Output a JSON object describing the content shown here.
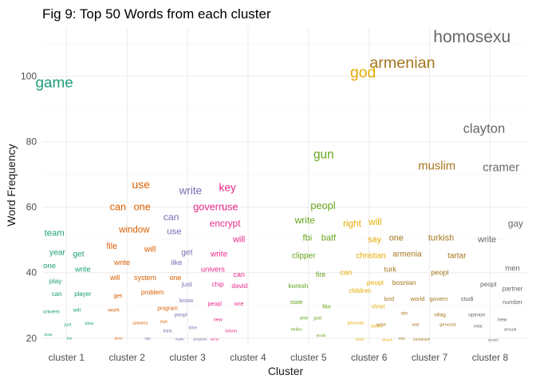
{
  "chart_data": {
    "type": "scatter",
    "title": "Fig 9: Top 50 Words from each cluster",
    "xlabel": "Cluster",
    "ylabel": "Word Frequency",
    "categories": [
      "cluster 1",
      "cluster 2",
      "cluster 3",
      "cluster 4",
      "cluster 5",
      "cluster 6",
      "cluster 7",
      "cluster 8"
    ],
    "yticks": [
      20,
      40,
      60,
      80,
      100
    ],
    "ylim": [
      18,
      115
    ],
    "grid": true,
    "legend": "none",
    "colors": {
      "cluster 1": "#1b9e77",
      "cluster 2": "#d95f02",
      "cluster 3": "#7570b3",
      "cluster 4": "#e7298a",
      "cluster 5": "#66a61e",
      "cluster 6": "#e6ab02",
      "cluster 7": "#a6761d",
      "cluster 8": "#666666"
    },
    "words": [
      {
        "cluster": 1,
        "word": "game",
        "freq": 98,
        "x": 0.8
      },
      {
        "cluster": 1,
        "word": "team",
        "freq": 52,
        "x": 0.8
      },
      {
        "cluster": 1,
        "word": "year",
        "freq": 46,
        "x": 0.85
      },
      {
        "cluster": 1,
        "word": "get",
        "freq": 45.5,
        "x": 1.2
      },
      {
        "cluster": 1,
        "word": "one",
        "freq": 42,
        "x": 0.72
      },
      {
        "cluster": 1,
        "word": "write",
        "freq": 41,
        "x": 1.27
      },
      {
        "cluster": 1,
        "word": "play",
        "freq": 37.5,
        "x": 0.82
      },
      {
        "cluster": 1,
        "word": "can",
        "freq": 33.5,
        "x": 0.84
      },
      {
        "cluster": 1,
        "word": "player",
        "freq": 33.5,
        "x": 1.27
      },
      {
        "cluster": 1,
        "word": "univers",
        "freq": 28,
        "x": 0.75
      },
      {
        "cluster": 1,
        "word": "will",
        "freq": 28.5,
        "x": 1.17
      },
      {
        "cluster": 1,
        "word": "just",
        "freq": 24,
        "x": 1.02
      },
      {
        "cluster": 1,
        "word": "time",
        "freq": 24.3,
        "x": 1.38
      },
      {
        "cluster": 1,
        "word": "think",
        "freq": 20.8,
        "x": 0.7
      },
      {
        "cluster": 1,
        "word": "fan",
        "freq": 20,
        "x": 1.05
      },
      {
        "cluster": 2,
        "word": "use",
        "freq": 67,
        "x": 2.23
      },
      {
        "cluster": 2,
        "word": "can",
        "freq": 60,
        "x": 1.85
      },
      {
        "cluster": 2,
        "word": "one",
        "freq": 60,
        "x": 2.25
      },
      {
        "cluster": 2,
        "word": "window",
        "freq": 53,
        "x": 2.12
      },
      {
        "cluster": 2,
        "word": "file",
        "freq": 48,
        "x": 1.75
      },
      {
        "cluster": 2,
        "word": "will",
        "freq": 47,
        "x": 2.38
      },
      {
        "cluster": 2,
        "word": "write",
        "freq": 43,
        "x": 1.92
      },
      {
        "cluster": 2,
        "word": "will",
        "freq": 38.5,
        "x": 1.8
      },
      {
        "cluster": 2,
        "word": "system",
        "freq": 38.5,
        "x": 2.3
      },
      {
        "cluster": 2,
        "word": "one",
        "freq": 38.5,
        "x": 2.8
      },
      {
        "cluster": 2,
        "word": "get",
        "freq": 33,
        "x": 1.85
      },
      {
        "cluster": 2,
        "word": "problem",
        "freq": 34,
        "x": 2.42
      },
      {
        "cluster": 2,
        "word": "work",
        "freq": 28.5,
        "x": 1.78
      },
      {
        "cluster": 2,
        "word": "program",
        "freq": 29,
        "x": 2.67
      },
      {
        "cluster": 2,
        "word": "univers",
        "freq": 24.5,
        "x": 2.22
      },
      {
        "cluster": 2,
        "word": "run",
        "freq": 24.8,
        "x": 2.61
      },
      {
        "cluster": 2,
        "word": "drive",
        "freq": 20,
        "x": 1.86
      },
      {
        "cluster": 3,
        "word": "write",
        "freq": 65,
        "x": 3.05
      },
      {
        "cluster": 3,
        "word": "can",
        "freq": 57,
        "x": 2.73
      },
      {
        "cluster": 3,
        "word": "use",
        "freq": 52.5,
        "x": 2.78
      },
      {
        "cluster": 3,
        "word": "get",
        "freq": 46,
        "x": 2.99
      },
      {
        "cluster": 3,
        "word": "like",
        "freq": 43,
        "x": 2.82
      },
      {
        "cluster": 3,
        "word": "just",
        "freq": 36.5,
        "x": 2.99
      },
      {
        "cluster": 3,
        "word": "know",
        "freq": 31.5,
        "x": 2.98
      },
      {
        "cluster": 3,
        "word": "peopl",
        "freq": 27,
        "x": 2.89
      },
      {
        "cluster": 3,
        "word": "think",
        "freq": 22,
        "x": 2.67
      },
      {
        "cluster": 3,
        "word": "time",
        "freq": 23,
        "x": 3.09
      },
      {
        "cluster": 3,
        "word": "say",
        "freq": 20,
        "x": 2.34
      },
      {
        "cluster": 3,
        "word": "make",
        "freq": 19.7,
        "x": 2.87
      },
      {
        "cluster": 3,
        "word": "program",
        "freq": 19.7,
        "x": 3.21
      },
      {
        "cluster": 4,
        "word": "key",
        "freq": 66,
        "x": 3.66
      },
      {
        "cluster": 4,
        "word": "govern",
        "freq": 60,
        "x": 3.35
      },
      {
        "cluster": 4,
        "word": "use",
        "freq": 60,
        "x": 3.7
      },
      {
        "cluster": 4,
        "word": "encrypt",
        "freq": 55,
        "x": 3.62
      },
      {
        "cluster": 4,
        "word": "will",
        "freq": 50,
        "x": 3.85
      },
      {
        "cluster": 4,
        "word": "write",
        "freq": 45.5,
        "x": 3.52
      },
      {
        "cluster": 4,
        "word": "univers",
        "freq": 41,
        "x": 3.42
      },
      {
        "cluster": 4,
        "word": "chip",
        "freq": 36.5,
        "x": 3.5
      },
      {
        "cluster": 4,
        "word": "can",
        "freq": 39.5,
        "x": 3.85
      },
      {
        "cluster": 4,
        "word": "david",
        "freq": 36,
        "x": 3.86
      },
      {
        "cluster": 4,
        "word": "peopl",
        "freq": 30.5,
        "x": 3.45
      },
      {
        "cluster": 4,
        "word": "one",
        "freq": 30.5,
        "x": 3.85
      },
      {
        "cluster": 4,
        "word": "new",
        "freq": 25.5,
        "x": 3.5
      },
      {
        "cluster": 4,
        "word": "inform",
        "freq": 22,
        "x": 3.72
      },
      {
        "cluster": 4,
        "word": "secur",
        "freq": 19.7,
        "x": 3.45
      },
      {
        "cluster": 5,
        "word": "gun",
        "freq": 76,
        "x": 5.25
      },
      {
        "cluster": 5,
        "word": "peopl",
        "freq": 60.5,
        "x": 5.24
      },
      {
        "cluster": 5,
        "word": "write",
        "freq": 56,
        "x": 4.94
      },
      {
        "cluster": 5,
        "word": "fbi",
        "freq": 50.5,
        "x": 4.98
      },
      {
        "cluster": 5,
        "word": "batf",
        "freq": 50.5,
        "x": 5.33
      },
      {
        "cluster": 5,
        "word": "clipper",
        "freq": 45,
        "x": 4.92
      },
      {
        "cluster": 5,
        "word": "fire",
        "freq": 39.5,
        "x": 5.2
      },
      {
        "cluster": 5,
        "word": "koresh",
        "freq": 36,
        "x": 4.83
      },
      {
        "cluster": 5,
        "word": "state",
        "freq": 31,
        "x": 4.8
      },
      {
        "cluster": 5,
        "word": "like",
        "freq": 29.5,
        "x": 5.3
      },
      {
        "cluster": 5,
        "word": "one",
        "freq": 26,
        "x": 4.92
      },
      {
        "cluster": 5,
        "word": "just",
        "freq": 26,
        "x": 5.15
      },
      {
        "cluster": 5,
        "word": "believ",
        "freq": 22.5,
        "x": 4.8
      },
      {
        "cluster": 5,
        "word": "death",
        "freq": 20.5,
        "x": 5.21
      },
      {
        "cluster": 6,
        "word": "god",
        "freq": 101,
        "x": 5.9
      },
      {
        "cluster": 6,
        "word": "will",
        "freq": 55.5,
        "x": 6.1
      },
      {
        "cluster": 6,
        "word": "right",
        "freq": 55,
        "x": 5.72
      },
      {
        "cluster": 6,
        "word": "say",
        "freq": 50,
        "x": 6.09
      },
      {
        "cluster": 6,
        "word": "christian",
        "freq": 45,
        "x": 6.03
      },
      {
        "cluster": 6,
        "word": "can",
        "freq": 40,
        "x": 5.62
      },
      {
        "cluster": 6,
        "word": "children",
        "freq": 34.5,
        "x": 5.85
      },
      {
        "cluster": 6,
        "word": "peopl",
        "freq": 37,
        "x": 6.1
      },
      {
        "cluster": 6,
        "word": "christ",
        "freq": 29.5,
        "x": 6.15
      },
      {
        "cluster": 6,
        "word": "jehovah",
        "freq": 24.5,
        "x": 5.78
      },
      {
        "cluster": 6,
        "word": "believ",
        "freq": 23.5,
        "x": 6.13
      },
      {
        "cluster": 6,
        "word": "jesus",
        "freq": 19.7,
        "x": 5.85
      },
      {
        "cluster": 6,
        "word": "church",
        "freq": 19.5,
        "x": 6.3
      },
      {
        "cluster": 7,
        "word": "armenian",
        "freq": 104,
        "x": 6.55
      },
      {
        "cluster": 7,
        "word": "muslim",
        "freq": 72.5,
        "x": 7.12
      },
      {
        "cluster": 7,
        "word": "one",
        "freq": 50.5,
        "x": 6.45
      },
      {
        "cluster": 7,
        "word": "turkish",
        "freq": 50.5,
        "x": 7.19
      },
      {
        "cluster": 7,
        "word": "armenia",
        "freq": 45.5,
        "x": 6.63
      },
      {
        "cluster": 7,
        "word": "tartar",
        "freq": 45,
        "x": 7.45
      },
      {
        "cluster": 7,
        "word": "turk",
        "freq": 41,
        "x": 6.35
      },
      {
        "cluster": 7,
        "word": "bosnian",
        "freq": 37,
        "x": 6.58
      },
      {
        "cluster": 7,
        "word": "peopl",
        "freq": 40,
        "x": 7.17
      },
      {
        "cluster": 7,
        "word": "lord",
        "freq": 32,
        "x": 6.33
      },
      {
        "cluster": 7,
        "word": "world",
        "freq": 32,
        "x": 6.8
      },
      {
        "cluster": 7,
        "word": "govern",
        "freq": 32,
        "x": 7.15
      },
      {
        "cluster": 7,
        "word": "sin",
        "freq": 27.5,
        "x": 6.58
      },
      {
        "cluster": 7,
        "word": "write",
        "freq": 24,
        "x": 6.2
      },
      {
        "cluster": 7,
        "word": "war",
        "freq": 24,
        "x": 6.77
      },
      {
        "cluster": 7,
        "word": "villag",
        "freq": 27,
        "x": 7.17
      },
      {
        "cluster": 7,
        "word": "genocid",
        "freq": 24,
        "x": 7.3
      },
      {
        "cluster": 7,
        "word": "way",
        "freq": 20,
        "x": 6.54
      },
      {
        "cluster": 7,
        "word": "paragraph",
        "freq": 19.7,
        "x": 6.87
      },
      {
        "cluster": 8,
        "word": "homosexu",
        "freq": 112,
        "x": 7.7
      },
      {
        "cluster": 8,
        "word": "clayton",
        "freq": 84,
        "x": 7.9
      },
      {
        "cluster": 8,
        "word": "cramer",
        "freq": 72,
        "x": 8.18
      },
      {
        "cluster": 8,
        "word": "gay",
        "freq": 55,
        "x": 8.42
      },
      {
        "cluster": 8,
        "word": "write",
        "freq": 50,
        "x": 7.95
      },
      {
        "cluster": 8,
        "word": "men",
        "freq": 41.5,
        "x": 8.37
      },
      {
        "cluster": 8,
        "word": "peopl",
        "freq": 36.5,
        "x": 7.97
      },
      {
        "cluster": 8,
        "word": "partner",
        "freq": 35,
        "x": 8.37
      },
      {
        "cluster": 8,
        "word": "studi",
        "freq": 32,
        "x": 7.62
      },
      {
        "cluster": 8,
        "word": "number",
        "freq": 31,
        "x": 8.37
      },
      {
        "cluster": 8,
        "word": "opinion",
        "freq": 27,
        "x": 7.78
      },
      {
        "cluster": 8,
        "word": "new",
        "freq": 25.5,
        "x": 8.2
      },
      {
        "cluster": 8,
        "word": "relat",
        "freq": 23.5,
        "x": 7.8
      },
      {
        "cluster": 8,
        "word": "sexual",
        "freq": 22.5,
        "x": 8.33
      },
      {
        "cluster": 8,
        "word": "societi",
        "freq": 19.5,
        "x": 8.05
      }
    ]
  }
}
